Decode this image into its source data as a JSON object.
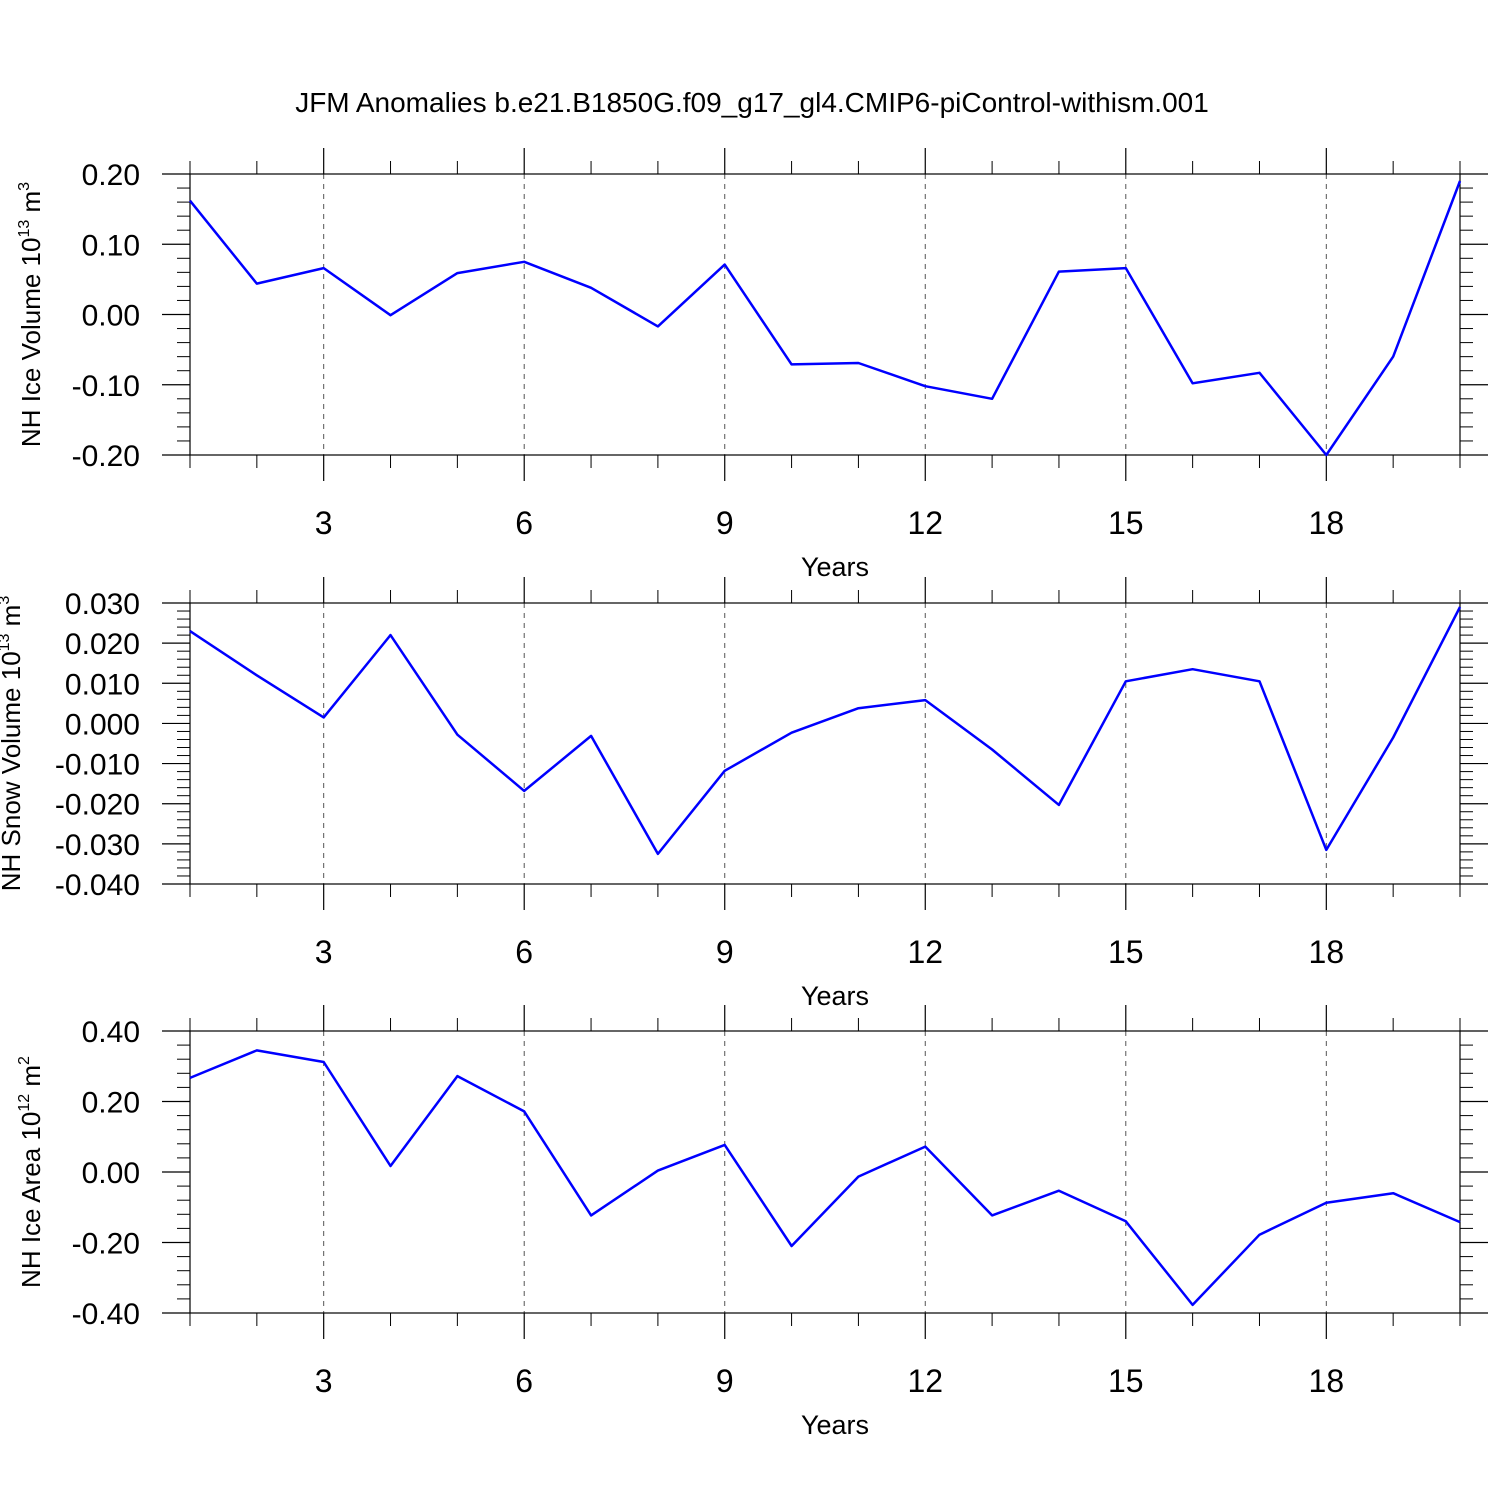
{
  "title": "JFM Anomalies b.e21.B1850G.f09_g17_gl4.CMIP6-piControl-withism.001",
  "line_color": "#0000ff",
  "chart_data": [
    {
      "type": "line",
      "ylabel": "NH Ice Volume 10",
      "ylabel_exp": "13",
      "ylabel_unit": " m",
      "ylabel_unit_exp": "3",
      "xlabel": "Years",
      "xlim": [
        1,
        20
      ],
      "ylim": [
        -0.2,
        0.2
      ],
      "xticks": [
        3,
        6,
        9,
        12,
        15,
        18
      ],
      "yticks": [
        -0.2,
        -0.1,
        0.0,
        0.1,
        0.2
      ],
      "ytick_labels": [
        "-0.20",
        "-0.10",
        "0.00",
        "0.10",
        "0.20"
      ],
      "grid": "vertical dashed",
      "x": [
        1,
        2,
        3,
        4,
        5,
        6,
        7,
        8,
        9,
        10,
        11,
        12,
        13,
        14,
        15,
        16,
        17,
        18,
        19,
        20
      ],
      "y": [
        0.162,
        0.044,
        0.066,
        -0.001,
        0.059,
        0.075,
        0.038,
        -0.017,
        0.071,
        -0.071,
        -0.069,
        -0.102,
        -0.12,
        0.061,
        0.066,
        -0.098,
        -0.083,
        -0.2,
        -0.06,
        0.19
      ]
    },
    {
      "type": "line",
      "ylabel": "NH Snow Volume 10",
      "ylabel_exp": "13",
      "ylabel_unit": " m",
      "ylabel_unit_exp": "3",
      "xlabel": "Years",
      "xlim": [
        1,
        20
      ],
      "ylim": [
        -0.04,
        0.03
      ],
      "xticks": [
        3,
        6,
        9,
        12,
        15,
        18
      ],
      "yticks": [
        -0.04,
        -0.03,
        -0.02,
        -0.01,
        0.0,
        0.01,
        0.02,
        0.03
      ],
      "ytick_labels": [
        "-0.040",
        "-0.030",
        "-0.020",
        "-0.010",
        "0.000",
        "0.010",
        "0.020",
        "0.030"
      ],
      "grid": "vertical dashed",
      "x": [
        1,
        2,
        3,
        4,
        5,
        6,
        7,
        8,
        9,
        10,
        11,
        12,
        13,
        14,
        15,
        16,
        17,
        18,
        19,
        20
      ],
      "y": [
        0.023,
        0.012,
        0.0015,
        0.022,
        -0.0028,
        -0.0168,
        -0.0031,
        -0.0325,
        -0.0118,
        -0.0023,
        0.0038,
        0.0058,
        -0.0065,
        -0.0203,
        0.0105,
        0.0135,
        0.0105,
        -0.0315,
        -0.0035,
        0.029
      ]
    },
    {
      "type": "line",
      "ylabel": "NH Ice Area 10",
      "ylabel_exp": "12",
      "ylabel_unit": " m",
      "ylabel_unit_exp": "2",
      "xlabel": "Years",
      "xlim": [
        1,
        20
      ],
      "ylim": [
        -0.4,
        0.4
      ],
      "xticks": [
        3,
        6,
        9,
        12,
        15,
        18
      ],
      "yticks": [
        -0.4,
        -0.2,
        0.0,
        0.2,
        0.4
      ],
      "ytick_labels": [
        "-0.40",
        "-0.20",
        "0.00",
        "0.20",
        "0.40"
      ],
      "grid": "vertical dashed",
      "x": [
        1,
        2,
        3,
        4,
        5,
        6,
        7,
        8,
        9,
        10,
        11,
        12,
        13,
        14,
        15,
        16,
        17,
        18,
        19,
        20
      ],
      "y": [
        0.267,
        0.345,
        0.312,
        0.017,
        0.272,
        0.172,
        -0.123,
        0.004,
        0.077,
        -0.21,
        -0.013,
        0.072,
        -0.123,
        -0.053,
        -0.14,
        -0.377,
        -0.178,
        -0.087,
        -0.06,
        -0.142
      ]
    }
  ]
}
